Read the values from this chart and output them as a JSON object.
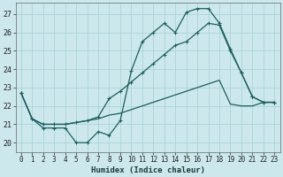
{
  "xlabel": "Humidex (Indice chaleur)",
  "bg_color": "#cce8ec",
  "grid_color": "#aad4d8",
  "line_color": "#1a6060",
  "xlim": [
    -0.5,
    23.5
  ],
  "ylim": [
    19.5,
    27.6
  ],
  "xticks": [
    0,
    1,
    2,
    3,
    4,
    5,
    6,
    7,
    8,
    9,
    10,
    11,
    12,
    13,
    14,
    15,
    16,
    17,
    18,
    19,
    20,
    21,
    22,
    23
  ],
  "yticks": [
    20,
    21,
    22,
    23,
    24,
    25,
    26,
    27
  ],
  "line1_x": [
    0,
    1,
    2,
    3,
    4,
    5,
    6,
    7,
    8,
    9,
    10,
    11,
    12,
    13,
    14,
    15,
    16,
    17,
    18,
    19,
    20,
    21,
    22,
    23
  ],
  "line1_y": [
    22.7,
    21.3,
    20.8,
    20.8,
    20.8,
    20.0,
    20.0,
    20.6,
    20.4,
    21.2,
    23.9,
    25.5,
    26.0,
    26.5,
    26.0,
    27.1,
    27.3,
    27.3,
    26.5,
    25.1,
    23.8,
    22.5,
    22.2,
    22.2
  ],
  "line2_x": [
    0,
    1,
    2,
    3,
    4,
    5,
    6,
    7,
    8,
    9,
    10,
    11,
    12,
    13,
    14,
    15,
    16,
    17,
    18,
    19,
    20,
    21,
    22,
    23
  ],
  "line2_y": [
    22.7,
    21.3,
    21.0,
    21.0,
    21.0,
    21.1,
    21.2,
    21.4,
    22.4,
    22.8,
    23.3,
    23.8,
    24.3,
    24.8,
    25.3,
    25.5,
    26.0,
    26.5,
    26.4,
    25.0,
    23.8,
    22.5,
    22.2,
    22.2
  ],
  "line3_x": [
    0,
    1,
    2,
    3,
    4,
    5,
    6,
    7,
    8,
    9,
    10,
    11,
    12,
    13,
    14,
    15,
    16,
    17,
    18,
    19,
    20,
    21,
    22,
    23
  ],
  "line3_y": [
    22.7,
    21.3,
    21.0,
    21.0,
    21.0,
    21.1,
    21.2,
    21.3,
    21.5,
    21.6,
    21.8,
    22.0,
    22.2,
    22.4,
    22.6,
    22.8,
    23.0,
    23.2,
    23.4,
    22.1,
    22.0,
    22.0,
    22.2,
    22.2
  ],
  "line1_marker": true,
  "line2_marker": true,
  "line3_marker": false,
  "marker_style": "+",
  "marker_size": 3.0,
  "linewidth": 0.9,
  "tick_fontsize": 5.5,
  "xlabel_fontsize": 6.5
}
